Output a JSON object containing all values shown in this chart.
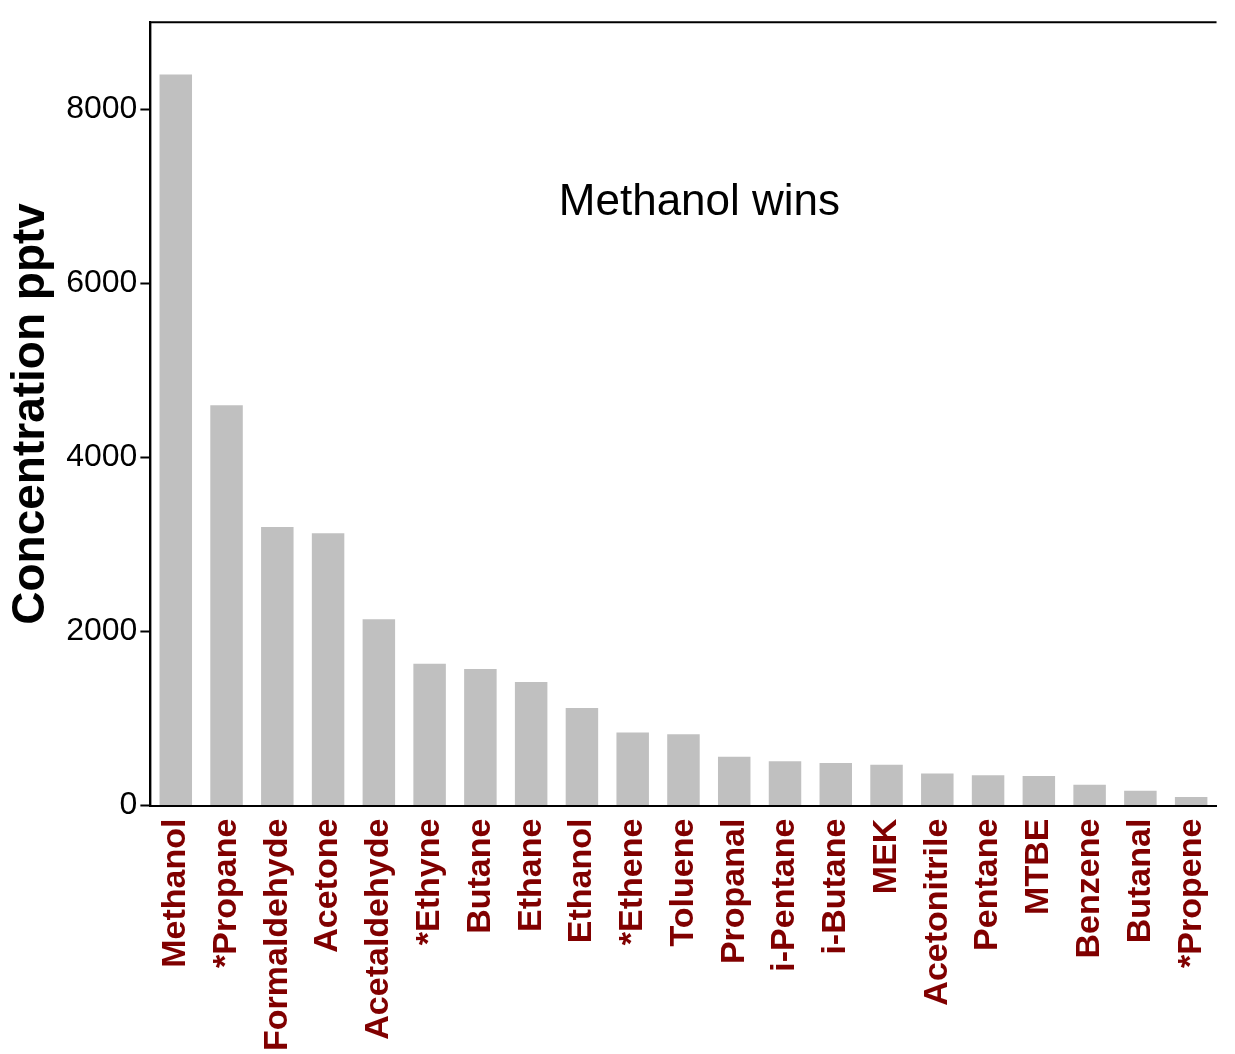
{
  "chart_data": {
    "type": "bar",
    "ylabel": "Concentration pptv",
    "annotations": [
      "Methanol wins"
    ],
    "categories": [
      "Methanol",
      "*Propane",
      "Formaldehyde",
      "Acetone",
      "Acetaldehyde",
      "*Ethyne",
      "Butane",
      "Ethane",
      "Ethanol",
      "*Ethene",
      "Toluene",
      "Propanal",
      "i-Pentane",
      "i-Butane",
      "MEK",
      "Acetonitrile",
      "Pentane",
      "MTBE",
      "Benzene",
      "Butanal",
      "*Propene"
    ],
    "values": [
      8400,
      4600,
      3200,
      3130,
      2140,
      1630,
      1570,
      1420,
      1120,
      840,
      820,
      560,
      510,
      490,
      470,
      370,
      350,
      340,
      240,
      170,
      100
    ],
    "color": "#c0c0c0",
    "ylim": [
      0,
      9000
    ],
    "yticks": [
      0,
      2000,
      4000,
      6000,
      8000
    ],
    "grid": false,
    "legend": false
  }
}
